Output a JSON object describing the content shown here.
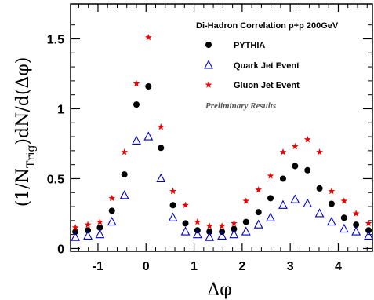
{
  "chart_data": {
    "type": "scatter",
    "title": "Di-Hadron Correlation p+p 200GeV",
    "annotation": "Preliminary Results",
    "xlabel": "Δφ",
    "ylabel_parts": {
      "prefix": "(1/N",
      "subscript": "Trig",
      "suffix": ")dN/d(Δφ)"
    },
    "xlim": [
      -1.57,
      4.71
    ],
    "ylim": [
      -0.02,
      1.75
    ],
    "x_ticks": [
      {
        "value": -1,
        "label": "-1"
      },
      {
        "value": 0,
        "label": "0"
      },
      {
        "value": 1,
        "label": "1"
      },
      {
        "value": 2,
        "label": "2"
      },
      {
        "value": 3,
        "label": "3"
      },
      {
        "value": 4,
        "label": "4"
      }
    ],
    "y_ticks": [
      {
        "value": 0,
        "label": "0"
      },
      {
        "value": 0.5,
        "label": "0.5"
      },
      {
        "value": 1,
        "label": "1"
      },
      {
        "value": 1.5,
        "label": "1.5"
      }
    ],
    "grid": false,
    "legend_position": "top-right",
    "x": [
      -1.47,
      -1.21,
      -0.96,
      -0.71,
      -0.45,
      -0.2,
      0.05,
      0.31,
      0.56,
      0.82,
      1.07,
      1.32,
      1.58,
      1.83,
      2.08,
      2.34,
      2.59,
      2.85,
      3.1,
      3.36,
      3.61,
      3.86,
      4.12,
      4.37,
      4.63
    ],
    "series": [
      {
        "name": "PYTHIA",
        "marker": "filled-circle",
        "color": "#000000",
        "values": [
          0.12,
          0.13,
          0.15,
          0.27,
          0.53,
          1.03,
          1.16,
          0.72,
          0.31,
          0.18,
          0.13,
          0.12,
          0.12,
          0.14,
          0.19,
          0.26,
          0.36,
          0.5,
          0.59,
          0.56,
          0.43,
          0.32,
          0.22,
          0.17,
          0.13
        ]
      },
      {
        "name": "Quark Jet Event",
        "marker": "open-triangle",
        "color": "#0000cc",
        "values": [
          0.08,
          0.09,
          0.1,
          0.19,
          0.38,
          0.77,
          0.8,
          0.5,
          0.22,
          0.12,
          0.1,
          0.08,
          0.09,
          0.1,
          0.12,
          0.17,
          0.22,
          0.31,
          0.35,
          0.32,
          0.25,
          0.19,
          0.14,
          0.12,
          0.09
        ]
      },
      {
        "name": "Gluon Jet Event",
        "marker": "star",
        "color": "#ee0000",
        "values": [
          0.15,
          0.17,
          0.19,
          0.36,
          0.69,
          1.18,
          1.51,
          0.87,
          0.41,
          0.31,
          0.19,
          0.16,
          0.16,
          0.18,
          0.34,
          0.42,
          0.52,
          0.69,
          0.73,
          0.78,
          0.69,
          0.41,
          0.34,
          0.25,
          0.18
        ]
      }
    ]
  }
}
